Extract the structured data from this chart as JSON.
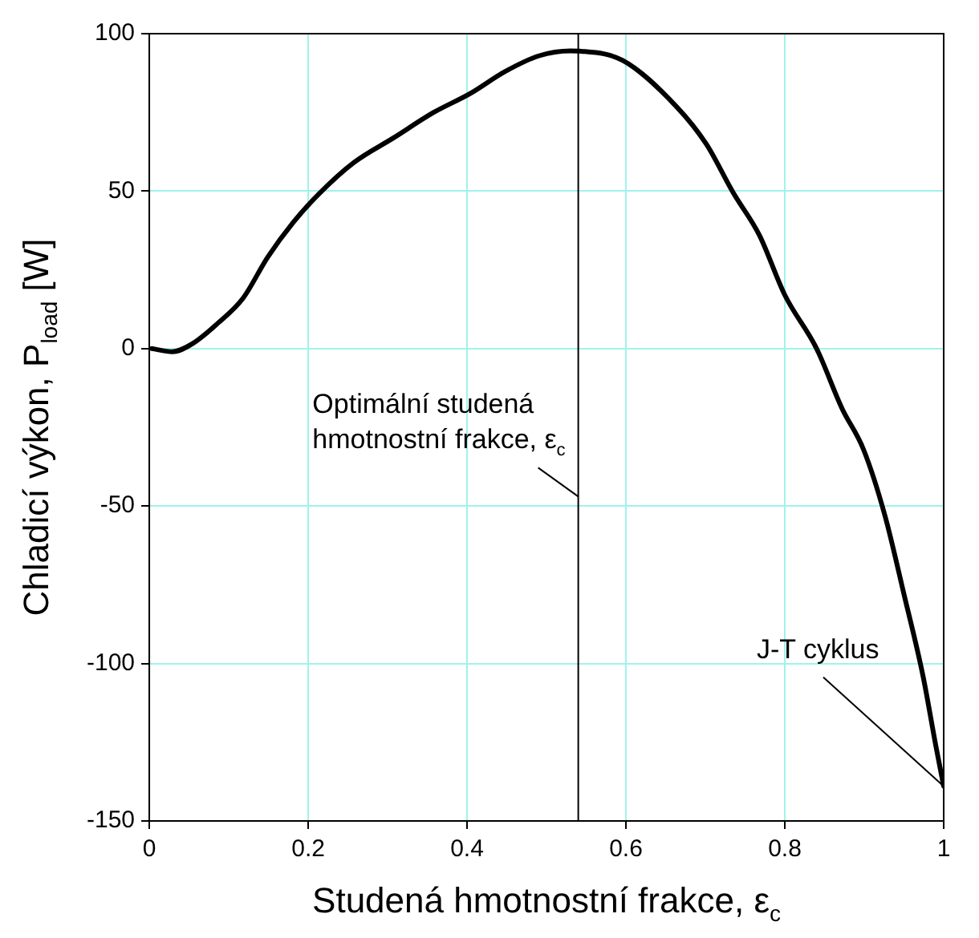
{
  "chart_data": {
    "type": "line",
    "xlabel": "Studená hmotnostní frakce, ε$_{c}$",
    "ylabel": "Chladicí výkon, P$_{load}$ [W]",
    "x": [
      0.003,
      0.029,
      0.054,
      0.086,
      0.118,
      0.149,
      0.181,
      0.213,
      0.257,
      0.308,
      0.358,
      0.404,
      0.448,
      0.491,
      0.53,
      0.544,
      0.596,
      0.663,
      0.701,
      0.735,
      0.768,
      0.8,
      0.84,
      0.872,
      0.899,
      0.926,
      0.95,
      0.974,
      0.99,
      1.0
    ],
    "series": [
      {
        "color": "#000000",
        "values": [
          0,
          -1,
          1.5,
          8,
          16,
          29,
          40,
          49,
          59,
          67,
          75,
          81,
          88,
          93,
          94.5,
          94.4,
          91.5,
          77,
          65,
          49.5,
          36,
          17,
          0,
          -19,
          -32,
          -53,
          -78,
          -104,
          -126,
          -139
        ]
      }
    ],
    "xlim": [
      0,
      1
    ],
    "xticks": [
      0,
      0.2,
      0.4,
      0.6,
      0.8,
      1
    ],
    "ylim": [
      -150,
      100
    ],
    "yticks": [
      -150,
      -100,
      -50,
      0,
      50,
      100
    ],
    "grid": true,
    "marker": "none",
    "line_style": "solid",
    "ref_lines": [
      {
        "axis": "x",
        "value": 0.54,
        "color": "#000000"
      }
    ],
    "annotations": [
      {
        "text": "Optimální studená\nhmotnostní frakce, ε$_{c}$",
        "x": 0.54,
        "y": -47
      },
      {
        "text": "J-T cyklus",
        "x": 1,
        "y": -139
      }
    ]
  }
}
